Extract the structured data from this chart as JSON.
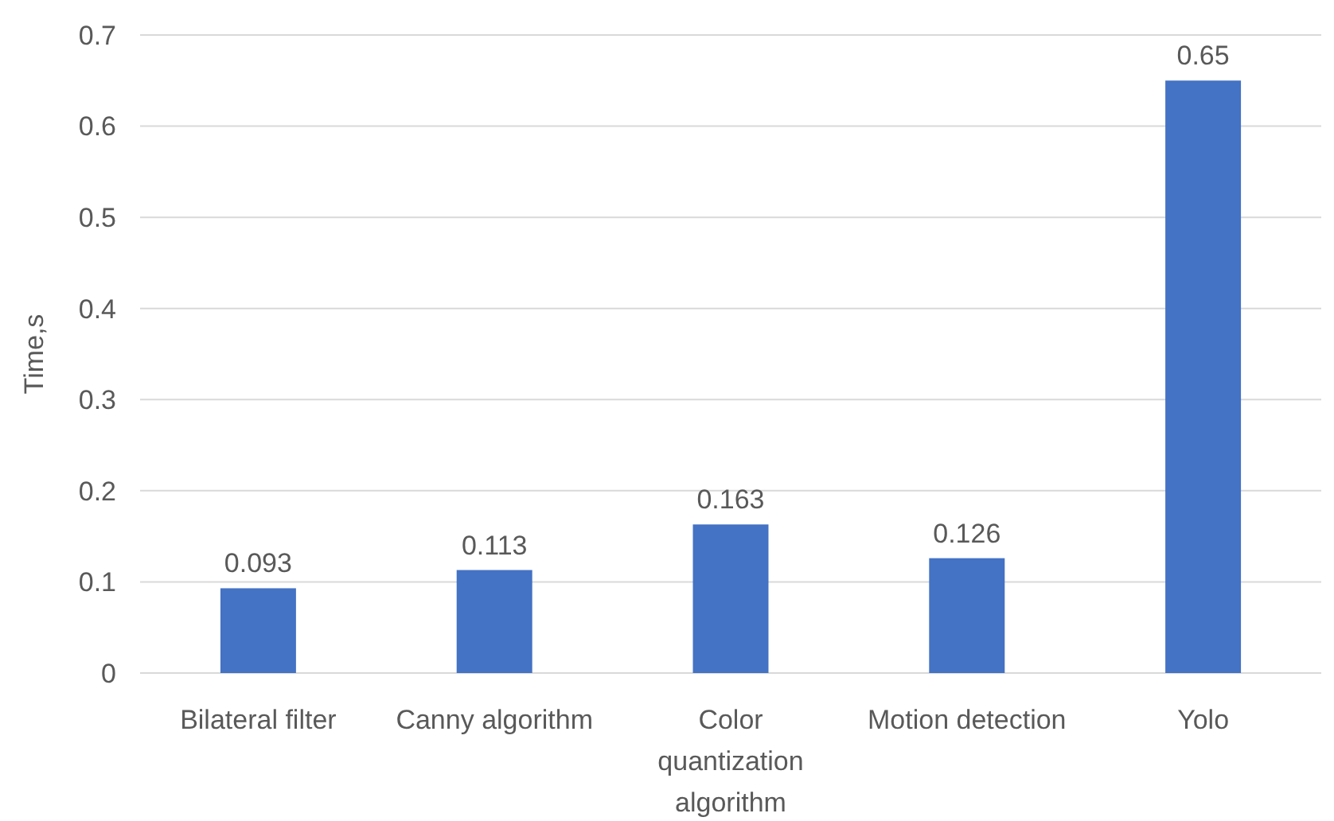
{
  "chart_data": {
    "type": "bar",
    "ylabel": "Time,s",
    "categories": [
      "Bilateral filter",
      "Canny algorithm",
      "Color quantization algorithm",
      "Motion detection",
      "Yolo"
    ],
    "values": [
      0.093,
      0.113,
      0.163,
      0.126,
      0.65
    ],
    "color": "#4472c4",
    "ylim": [
      0,
      0.7
    ],
    "yticks": [
      0,
      0.1,
      0.2,
      0.3,
      0.4,
      0.5,
      0.6,
      0.7
    ],
    "grid": "y",
    "data_labels": true
  }
}
